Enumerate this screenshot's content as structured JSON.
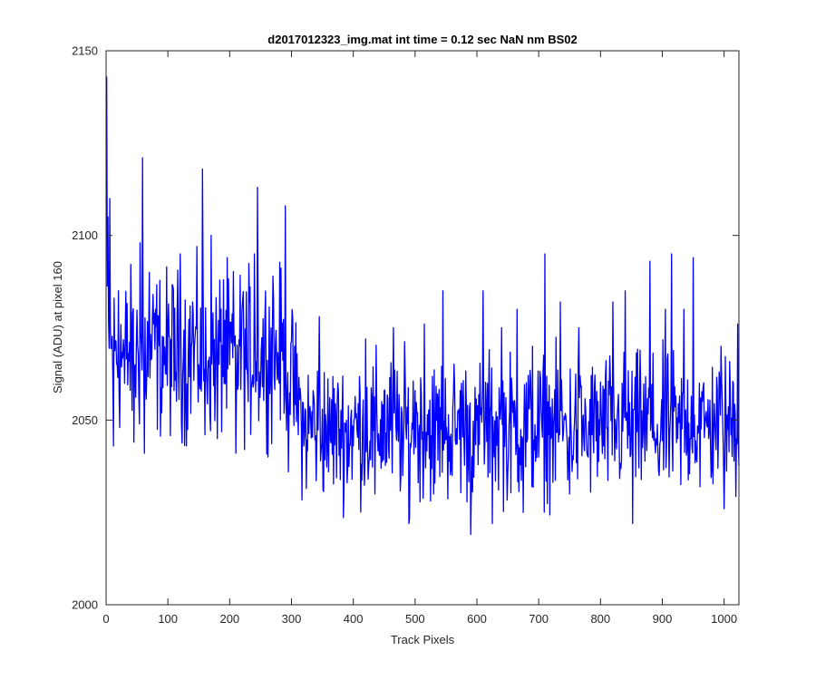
{
  "chart_data": {
    "type": "line",
    "title": "d2017012323_img.mat int time = 0.12 sec  NaN nm BS02",
    "xlabel": "Track Pixels",
    "ylabel": "Signal (ADU) at pixel 160",
    "xlim": [
      0,
      1024
    ],
    "ylim": [
      2000,
      2150
    ],
    "xticks": [
      0,
      100,
      200,
      300,
      400,
      500,
      600,
      700,
      800,
      900,
      1000
    ],
    "yticks": [
      2000,
      2050,
      2100,
      2150
    ],
    "grid": false,
    "series": [
      {
        "color": "#0000ff",
        "x_start": 1,
        "x_step": 1,
        "n_points": 1024,
        "summary": {
          "initial_spike": 2143,
          "mean_1_to_290": 2068,
          "mean_290_to_1024": 2048,
          "min": 2019,
          "max": 2143
        },
        "anchor_points": [
          [
            1,
            2143
          ],
          [
            3,
            2105
          ],
          [
            6,
            2110
          ],
          [
            12,
            2043
          ],
          [
            20,
            2085
          ],
          [
            30,
            2060
          ],
          [
            45,
            2044
          ],
          [
            55,
            2098
          ],
          [
            59,
            2121
          ],
          [
            62,
            2041
          ],
          [
            70,
            2090
          ],
          [
            80,
            2080
          ],
          [
            90,
            2052
          ],
          [
            100,
            2075
          ],
          [
            110,
            2058
          ],
          [
            120,
            2095
          ],
          [
            130,
            2043
          ],
          [
            140,
            2082
          ],
          [
            150,
            2065
          ],
          [
            156,
            2118
          ],
          [
            160,
            2046
          ],
          [
            170,
            2100
          ],
          [
            180,
            2045
          ],
          [
            190,
            2088
          ],
          [
            200,
            2065
          ],
          [
            210,
            2041
          ],
          [
            220,
            2080
          ],
          [
            230,
            2055
          ],
          [
            240,
            2095
          ],
          [
            245,
            2113
          ],
          [
            250,
            2060
          ],
          [
            262,
            2040
          ],
          [
            270,
            2089
          ],
          [
            280,
            2060
          ],
          [
            290,
            2108
          ],
          [
            295,
            2036
          ],
          [
            305,
            2070
          ],
          [
            320,
            2043
          ],
          [
            335,
            2058
          ],
          [
            345,
            2078
          ],
          [
            360,
            2036
          ],
          [
            375,
            2060
          ],
          [
            390,
            2033
          ],
          [
            400,
            2043
          ],
          [
            420,
            2072
          ],
          [
            435,
            2030
          ],
          [
            450,
            2058
          ],
          [
            465,
            2075
          ],
          [
            480,
            2035
          ],
          [
            490,
            2022
          ],
          [
            500,
            2058
          ],
          [
            515,
            2076
          ],
          [
            530,
            2030
          ],
          [
            545,
            2085
          ],
          [
            560,
            2035
          ],
          [
            575,
            2060
          ],
          [
            590,
            2019
          ],
          [
            600,
            2050
          ],
          [
            610,
            2085
          ],
          [
            625,
            2022
          ],
          [
            640,
            2075
          ],
          [
            650,
            2036
          ],
          [
            665,
            2080
          ],
          [
            675,
            2025
          ],
          [
            690,
            2070
          ],
          [
            700,
            2040
          ],
          [
            710,
            2095
          ],
          [
            720,
            2045
          ],
          [
            735,
            2082
          ],
          [
            750,
            2030
          ],
          [
            765,
            2075
          ],
          [
            780,
            2040
          ],
          [
            790,
            2058
          ],
          [
            805,
            2043
          ],
          [
            820,
            2082
          ],
          [
            835,
            2060
          ],
          [
            840,
            2085
          ],
          [
            852,
            2022
          ],
          [
            865,
            2060
          ],
          [
            880,
            2093
          ],
          [
            895,
            2035
          ],
          [
            905,
            2080
          ],
          [
            915,
            2095
          ],
          [
            925,
            2045
          ],
          [
            935,
            2080
          ],
          [
            945,
            2045
          ],
          [
            950,
            2094
          ],
          [
            960,
            2060
          ],
          [
            975,
            2045
          ],
          [
            985,
            2050
          ],
          [
            995,
            2070
          ],
          [
            1000,
            2026
          ],
          [
            1010,
            2058
          ],
          [
            1015,
            2060
          ],
          [
            1022,
            2076
          ]
        ]
      }
    ]
  }
}
